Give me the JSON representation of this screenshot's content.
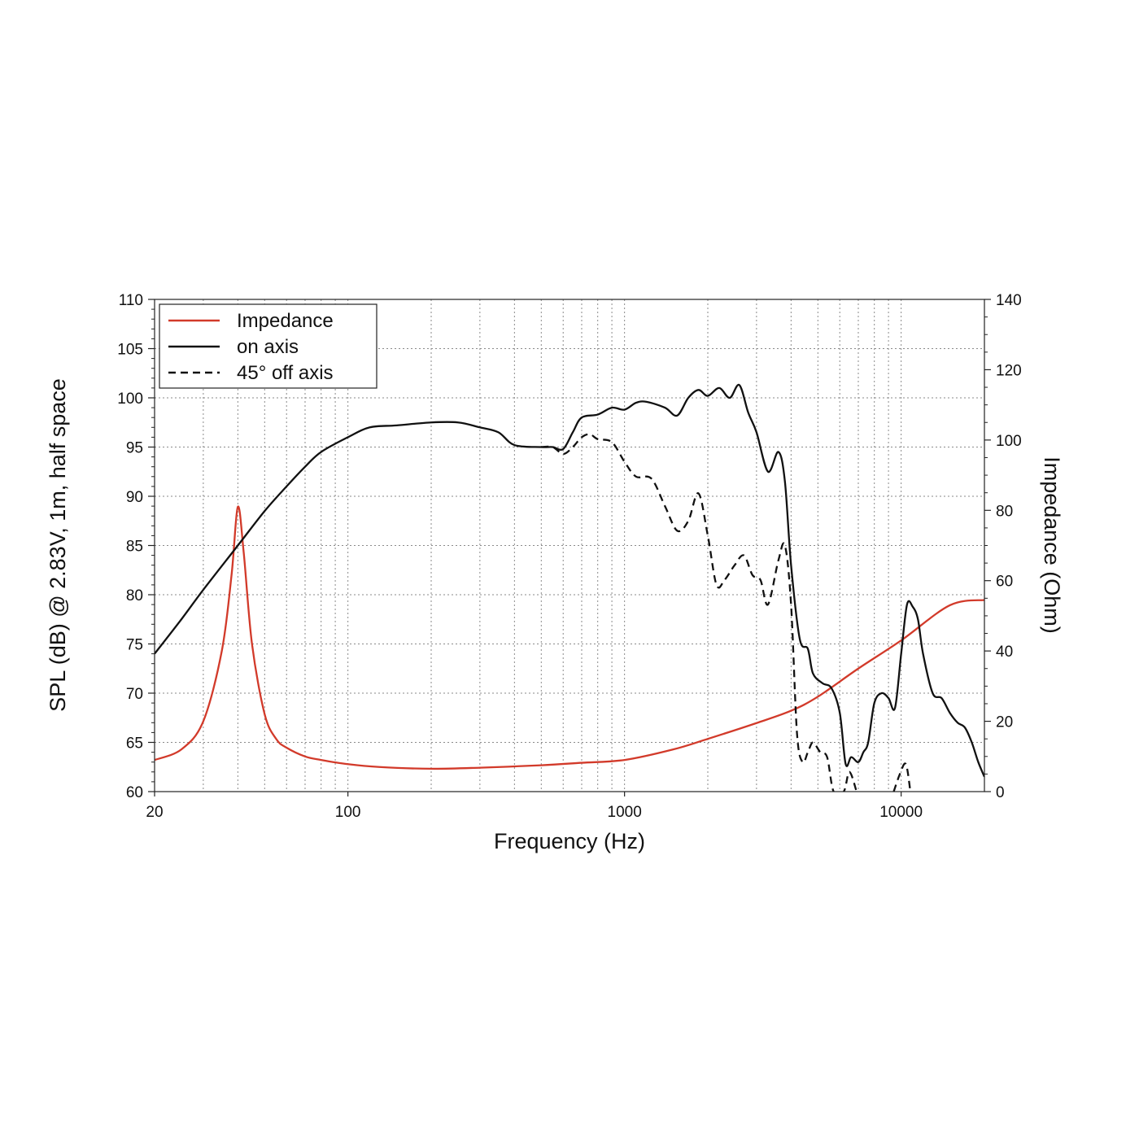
{
  "chart_data": {
    "type": "line",
    "xlabel": "Frequency (Hz)",
    "ylabel": "SPL (dB) @ 2.83V, 1m, half space",
    "y2label": "Impedance (Ohm)",
    "xscale": "log",
    "xlim": [
      20,
      20000
    ],
    "ylim": [
      60,
      110
    ],
    "y2lim": [
      0,
      140
    ],
    "x_ticks": [
      20,
      100,
      1000,
      10000
    ],
    "y_ticks": [
      60,
      65,
      70,
      75,
      80,
      85,
      90,
      95,
      100,
      105,
      110
    ],
    "y2_ticks": [
      0,
      20,
      40,
      60,
      80,
      100,
      120,
      140
    ],
    "grid": true,
    "legend_position": "top-left",
    "series": [
      {
        "name": "Impedance",
        "axis": "right",
        "color": "#d23a2a",
        "style": "solid",
        "points": [
          [
            20,
            9
          ],
          [
            25,
            12
          ],
          [
            30,
            20
          ],
          [
            35,
            40
          ],
          [
            38,
            62
          ],
          [
            40,
            81
          ],
          [
            42,
            68
          ],
          [
            45,
            42
          ],
          [
            50,
            22
          ],
          [
            55,
            15
          ],
          [
            60,
            12.5
          ],
          [
            70,
            10
          ],
          [
            80,
            9
          ],
          [
            100,
            7.8
          ],
          [
            130,
            7
          ],
          [
            200,
            6.5
          ],
          [
            300,
            6.8
          ],
          [
            500,
            7.5
          ],
          [
            700,
            8.2
          ],
          [
            1000,
            9
          ],
          [
            1500,
            12
          ],
          [
            2000,
            15
          ],
          [
            3000,
            19.5
          ],
          [
            4000,
            23
          ],
          [
            5000,
            27
          ],
          [
            7000,
            35
          ],
          [
            10000,
            43
          ],
          [
            15000,
            53
          ],
          [
            20000,
            54.5
          ]
        ]
      },
      {
        "name": "on axis",
        "axis": "left",
        "color": "#111111",
        "style": "solid",
        "points": [
          [
            20,
            74
          ],
          [
            25,
            77.5
          ],
          [
            30,
            80.5
          ],
          [
            40,
            85
          ],
          [
            50,
            88.5
          ],
          [
            60,
            91
          ],
          [
            70,
            93
          ],
          [
            80,
            94.5
          ],
          [
            100,
            96
          ],
          [
            120,
            97
          ],
          [
            150,
            97.2
          ],
          [
            200,
            97.5
          ],
          [
            250,
            97.5
          ],
          [
            300,
            97
          ],
          [
            350,
            96.5
          ],
          [
            400,
            95.2
          ],
          [
            500,
            95
          ],
          [
            550,
            95
          ],
          [
            600,
            94.8
          ],
          [
            650,
            96.5
          ],
          [
            700,
            98
          ],
          [
            800,
            98.3
          ],
          [
            900,
            99
          ],
          [
            1000,
            98.8
          ],
          [
            1100,
            99.5
          ],
          [
            1200,
            99.6
          ],
          [
            1400,
            99
          ],
          [
            1550,
            98.2
          ],
          [
            1700,
            100
          ],
          [
            1850,
            100.8
          ],
          [
            2000,
            100.2
          ],
          [
            2200,
            101
          ],
          [
            2400,
            100
          ],
          [
            2600,
            101.3
          ],
          [
            2800,
            98.5
          ],
          [
            3000,
            96.5
          ],
          [
            3300,
            92.5
          ],
          [
            3600,
            94.5
          ],
          [
            3800,
            91.5
          ],
          [
            4000,
            83
          ],
          [
            4300,
            75.5
          ],
          [
            4600,
            74.5
          ],
          [
            4800,
            72
          ],
          [
            5200,
            71
          ],
          [
            5600,
            70.5
          ],
          [
            6000,
            68
          ],
          [
            6300,
            62.8
          ],
          [
            6600,
            63.5
          ],
          [
            7000,
            63
          ],
          [
            7300,
            64
          ],
          [
            7600,
            65
          ],
          [
            8000,
            69
          ],
          [
            8500,
            70
          ],
          [
            9000,
            69.5
          ],
          [
            9500,
            68.5
          ],
          [
            10000,
            74
          ],
          [
            10500,
            79
          ],
          [
            11000,
            78.8
          ],
          [
            11500,
            77.5
          ],
          [
            12000,
            74
          ],
          [
            13000,
            70
          ],
          [
            14000,
            69.5
          ],
          [
            15000,
            68
          ],
          [
            16000,
            67
          ],
          [
            17000,
            66.5
          ],
          [
            18000,
            65
          ],
          [
            19000,
            63
          ],
          [
            20000,
            61.5
          ]
        ]
      },
      {
        "name": "45° off axis",
        "axis": "left",
        "color": "#111111",
        "style": "dashed",
        "points": [
          [
            500,
            95
          ],
          [
            550,
            95
          ],
          [
            600,
            94.3
          ],
          [
            650,
            95
          ],
          [
            700,
            96
          ],
          [
            750,
            96.3
          ],
          [
            800,
            95.8
          ],
          [
            900,
            95.5
          ],
          [
            1000,
            93.5
          ],
          [
            1100,
            92
          ],
          [
            1250,
            91.8
          ],
          [
            1400,
            89
          ],
          [
            1550,
            86.5
          ],
          [
            1700,
            87.5
          ],
          [
            1850,
            90.3
          ],
          [
            2000,
            86
          ],
          [
            2150,
            81
          ],
          [
            2300,
            81.5
          ],
          [
            2500,
            83
          ],
          [
            2700,
            84
          ],
          [
            2900,
            82
          ],
          [
            3100,
            81.5
          ],
          [
            3300,
            79
          ],
          [
            3600,
            83.5
          ],
          [
            3800,
            85
          ],
          [
            4000,
            79
          ],
          [
            4200,
            66
          ],
          [
            4400,
            63
          ],
          [
            4600,
            64
          ],
          [
            4800,
            65
          ],
          [
            5100,
            64
          ],
          [
            5400,
            63.5
          ],
          [
            5700,
            60
          ],
          [
            6200,
            60
          ],
          [
            6500,
            62
          ],
          [
            6900,
            60
          ]
        ]
      },
      {
        "name": "45° off axis",
        "axis": "left",
        "color": "#111111",
        "style": "dashed",
        "points": [
          [
            9400,
            60
          ],
          [
            9900,
            61.8
          ],
          [
            10400,
            62.8
          ],
          [
            10800,
            60
          ]
        ]
      }
    ]
  }
}
